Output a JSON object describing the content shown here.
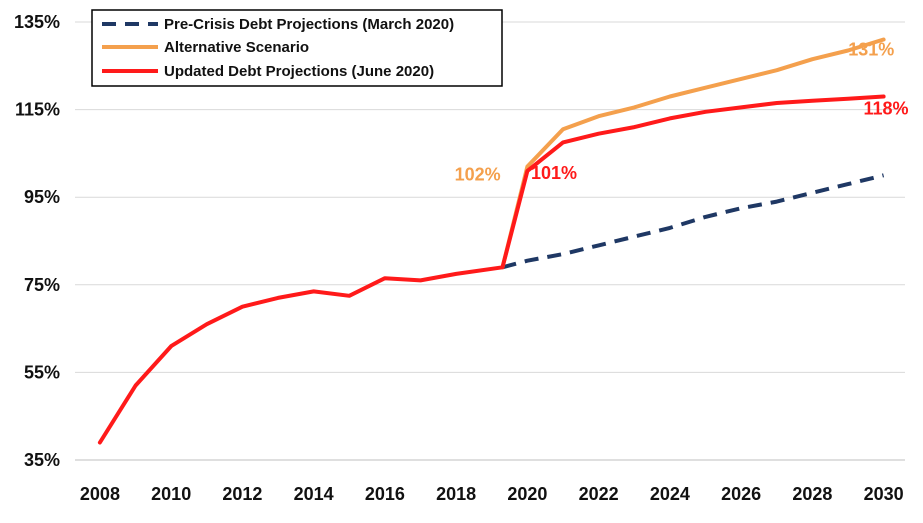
{
  "chart_data": {
    "type": "line",
    "title": "",
    "xlabel": "",
    "ylabel": "",
    "ylim": [
      35,
      135
    ],
    "xlim": [
      2008,
      2030
    ],
    "yticks": [
      "35%",
      "55%",
      "75%",
      "95%",
      "115%",
      "135%"
    ],
    "ytick_values": [
      35,
      55,
      75,
      95,
      115,
      135
    ],
    "xticks": [
      "2008",
      "2010",
      "2012",
      "2014",
      "2016",
      "2018",
      "2020",
      "2022",
      "2024",
      "2026",
      "2028",
      "2030"
    ],
    "xtick_values": [
      2008,
      2010,
      2012,
      2014,
      2016,
      2018,
      2020,
      2022,
      2024,
      2026,
      2028,
      2030
    ],
    "grid": "horizontal",
    "legend_position": "top-left",
    "series": [
      {
        "name": "Pre-Crisis Debt Projections (March 2020)",
        "color": "#1f3864",
        "style": "dashed",
        "x": [
          2019.3,
          2020,
          2021,
          2022,
          2023,
          2024,
          2025,
          2026,
          2027,
          2028,
          2029,
          2030
        ],
        "y": [
          79,
          80.5,
          82,
          84,
          86,
          88,
          90.5,
          92.5,
          94,
          96,
          98,
          100
        ]
      },
      {
        "name": "Alternative Scenario",
        "color": "#f4a04d",
        "style": "solid",
        "x": [
          2019.3,
          2020,
          2021,
          2022,
          2023,
          2024,
          2025,
          2026,
          2027,
          2028,
          2029,
          2030
        ],
        "y": [
          79,
          102,
          110.5,
          113.5,
          115.5,
          118,
          120,
          122,
          124,
          126.5,
          128.5,
          131
        ]
      },
      {
        "name": "Updated Debt Projections (June 2020)",
        "color": "#ff1a1a",
        "style": "solid",
        "x": [
          2008,
          2009,
          2010,
          2011,
          2012,
          2013,
          2014,
          2015,
          2016,
          2017,
          2018,
          2019.3,
          2020,
          2021,
          2022,
          2023,
          2024,
          2025,
          2026,
          2027,
          2028,
          2029,
          2030
        ],
        "y": [
          39,
          52,
          61,
          66,
          70,
          72,
          73.5,
          72.5,
          76.5,
          76,
          77.5,
          79,
          101,
          107.5,
          109.5,
          111,
          113,
          114.5,
          115.5,
          116.5,
          117,
          117.5,
          118
        ]
      }
    ],
    "annotations": [
      {
        "text": "102%",
        "series": "Alternative Scenario",
        "color": "#f4a04d"
      },
      {
        "text": "101%",
        "series": "Updated Debt Projections (June 2020)",
        "color": "#ff1a1a"
      },
      {
        "text": "131%",
        "series": "Alternative Scenario",
        "color": "#f4a04d"
      },
      {
        "text": "118%",
        "series": "Updated Debt Projections (June 2020)",
        "color": "#ff1a1a"
      }
    ]
  }
}
